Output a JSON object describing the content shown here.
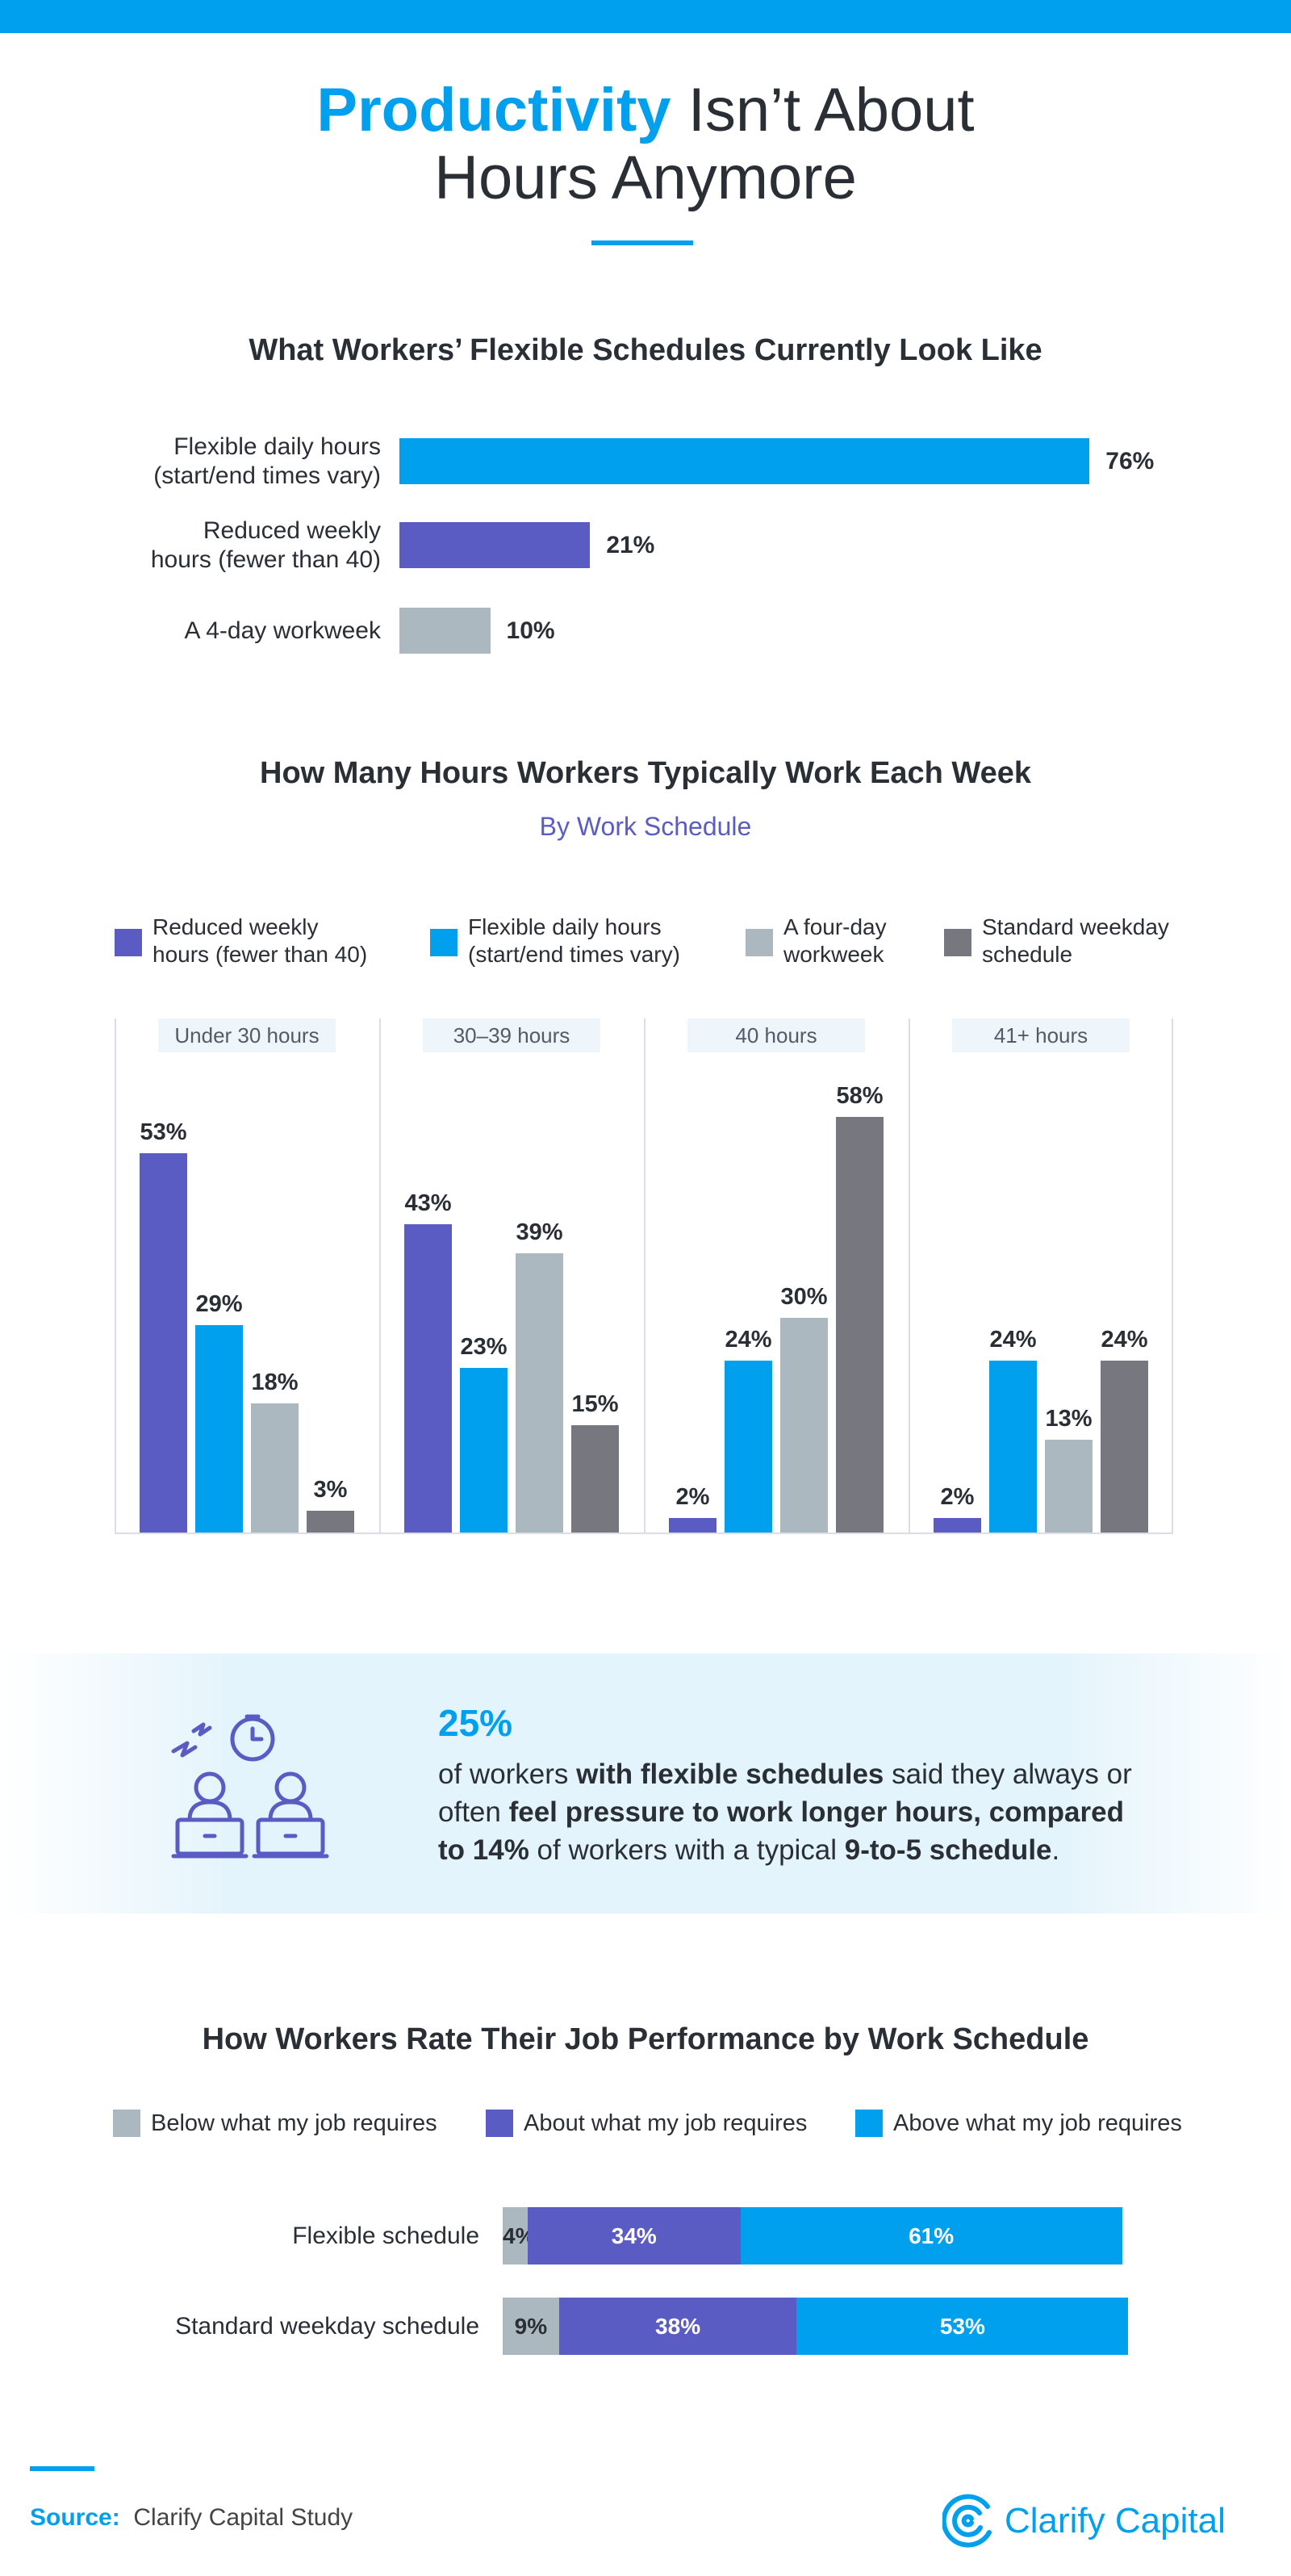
{
  "header": {
    "title_highlight": "Productivity",
    "title_rest": "Isn’t About\nHours Anymore"
  },
  "chart_data": [
    {
      "type": "bar",
      "title": "What Workers’ Flexible Schedules Currently Look Like",
      "categories": [
        "Flexible daily hours\n(start/end times vary)",
        "Reduced weekly\nhours (fewer than 40)",
        "A 4-day workweek"
      ],
      "values": [
        76,
        21,
        10
      ],
      "value_labels": [
        "76%",
        "21%",
        "10%"
      ],
      "colors": [
        "#00a0ef",
        "#5b5bc4",
        "#abb8bf"
      ]
    },
    {
      "type": "column",
      "title": "How Many Hours Workers Typically Work Each Week",
      "subtitle": "By Work Schedule",
      "categories": [
        "Under 30 hours",
        "30–39 hours",
        "40 hours",
        "41+ hours"
      ],
      "series": [
        {
          "name": "Reduced weekly\nhours (fewer than 40)",
          "color": "#5b5bc4",
          "values": [
            53,
            43,
            2,
            2
          ],
          "value_labels": [
            "53%",
            "43%",
            "2%",
            "2%"
          ]
        },
        {
          "name": "Flexible daily hours\n(start/end times vary)",
          "color": "#00a0ef",
          "values": [
            29,
            23,
            24,
            24
          ],
          "value_labels": [
            "29%",
            "23%",
            "24%",
            "24%"
          ]
        },
        {
          "name": "A four-day\nworkweek",
          "color": "#abb8bf",
          "values": [
            18,
            39,
            30,
            13
          ],
          "value_labels": [
            "18%",
            "39%",
            "30%",
            "13%"
          ]
        },
        {
          "name": "Standard weekday\nschedule",
          "color": "#77777f",
          "values": [
            3,
            15,
            58,
            24
          ],
          "value_labels": [
            "3%",
            "15%",
            "58%",
            "24%"
          ]
        }
      ]
    },
    {
      "type": "stacked_bar",
      "title": "How Workers Rate Their Job Performance by Work Schedule",
      "categories": [
        "Flexible schedule",
        "Standard weekday schedule"
      ],
      "series": [
        {
          "name": "Below what my job requires",
          "color": "#abb8bf",
          "label_color": "#2a2f36",
          "values": [
            4,
            9
          ],
          "value_labels": [
            "4%",
            "9%"
          ]
        },
        {
          "name": "About what my job requires",
          "color": "#5b5bc4",
          "label_color": "#ffffff",
          "values": [
            34,
            38
          ],
          "value_labels": [
            "34%",
            "38%"
          ]
        },
        {
          "name": "Above what my job requires",
          "color": "#00a0ef",
          "label_color": "#ffffff",
          "values": [
            61,
            53
          ],
          "value_labels": [
            "61%",
            "53%"
          ]
        }
      ]
    }
  ],
  "callout": {
    "stat": "25%",
    "text": [
      {
        "text": "of workers ",
        "bold": false
      },
      {
        "text": "with flexible schedules",
        "bold": true
      },
      {
        "text": " said they always or often ",
        "bold": false
      },
      {
        "text": "feel pressure to work longer hours, compared to 14%",
        "bold": true
      },
      {
        "text": " of workers with a typical ",
        "bold": false
      },
      {
        "text": "9-to-5 schedule",
        "bold": true
      },
      {
        "text": ".",
        "bold": false
      }
    ]
  },
  "footer": {
    "source_label": "Source:",
    "source": "Clarify Capital Study",
    "brand": "Clarify Capital"
  }
}
